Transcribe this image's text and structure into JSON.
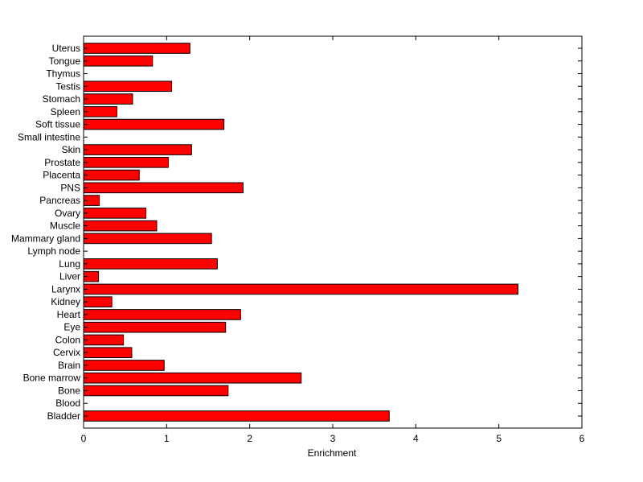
{
  "chart_data": {
    "type": "bar",
    "orientation": "horizontal",
    "title": "",
    "xlabel": "Enrichment",
    "ylabel": "",
    "xlim": [
      0,
      6
    ],
    "xticks": [
      "0",
      "1",
      "2",
      "3",
      "4",
      "5",
      "6"
    ],
    "grid": false,
    "legend": "none",
    "bar_color": "#ff0000",
    "bar_edge_color": "#000000",
    "categories": [
      "Bladder",
      "Blood",
      "Bone",
      "Bone marrow",
      "Brain",
      "Cervix",
      "Colon",
      "Eye",
      "Heart",
      "Kidney",
      "Larynx",
      "Liver",
      "Lung",
      "Lymph node",
      "Mammary gland",
      "Muscle",
      "Ovary",
      "Pancreas",
      "PNS",
      "Placenta",
      "Prostate",
      "Skin",
      "Small intestine",
      "Soft tissue",
      "Spleen",
      "Stomach",
      "Testis",
      "Thymus",
      "Tongue",
      "Uterus"
    ],
    "values": [
      3.68,
      0,
      1.74,
      2.62,
      0.97,
      0.58,
      0.48,
      1.71,
      1.89,
      0.34,
      5.23,
      0.18,
      1.61,
      0,
      1.54,
      0.88,
      0.75,
      0.19,
      1.92,
      0.67,
      1.02,
      1.3,
      0,
      1.69,
      0.4,
      0.59,
      1.06,
      0,
      0.83,
      1.28
    ]
  }
}
